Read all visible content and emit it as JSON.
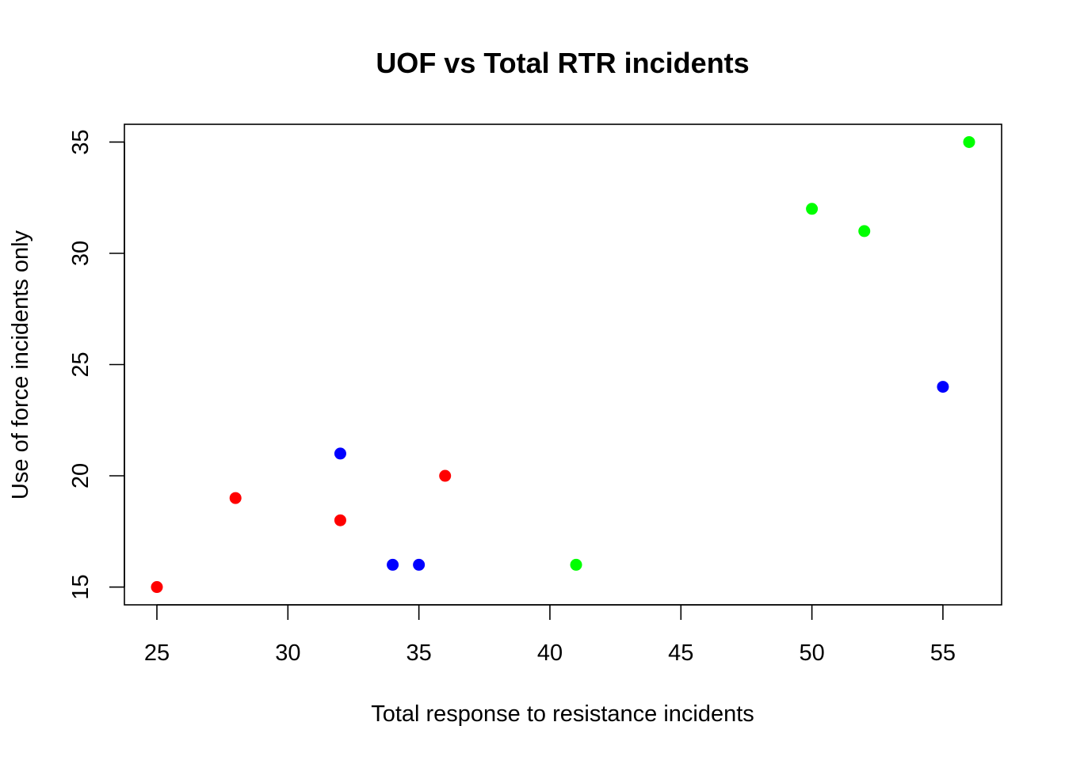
{
  "chart_data": {
    "type": "scatter",
    "title": "UOF vs Total RTR incidents",
    "xlabel": "Total response to resistance incidents",
    "ylabel": "Use of force incidents only",
    "xlim": [
      23.76,
      57.24
    ],
    "ylim": [
      14.2,
      35.8
    ],
    "xticks": [
      25,
      30,
      35,
      40,
      45,
      50,
      55
    ],
    "yticks": [
      15,
      20,
      25,
      30,
      35
    ],
    "grid": false,
    "legend": "none",
    "colors": {
      "red": "#ff0000",
      "blue": "#0000ff",
      "green": "#00ff00"
    },
    "points": [
      {
        "x": 25,
        "y": 15,
        "color": "red"
      },
      {
        "x": 28,
        "y": 19,
        "color": "red"
      },
      {
        "x": 32,
        "y": 18,
        "color": "red"
      },
      {
        "x": 36,
        "y": 20,
        "color": "red"
      },
      {
        "x": 32,
        "y": 21,
        "color": "blue"
      },
      {
        "x": 34,
        "y": 16,
        "color": "blue"
      },
      {
        "x": 35,
        "y": 16,
        "color": "blue"
      },
      {
        "x": 55,
        "y": 24,
        "color": "blue"
      },
      {
        "x": 41,
        "y": 16,
        "color": "green"
      },
      {
        "x": 50,
        "y": 32,
        "color": "green"
      },
      {
        "x": 52,
        "y": 31,
        "color": "green"
      },
      {
        "x": 56,
        "y": 35,
        "color": "green"
      }
    ]
  }
}
